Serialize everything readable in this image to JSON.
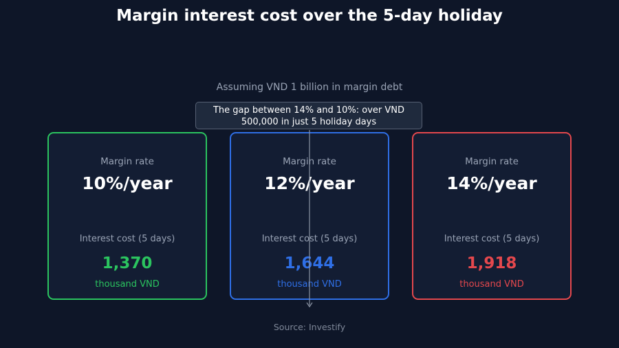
{
  "header": {
    "title": "Margin interest cost over the 5-day holiday",
    "subtitle": "Assuming VND 1 billion in margin debt"
  },
  "annotation": "The gap between 14% and 10%: over VND 500,000 in just 5 holiday days",
  "cards": [
    {
      "label": "Margin rate",
      "rate": "10%/year",
      "cost_label": "Interest cost (5 days)",
      "cost": "1,370",
      "unit": "thousand VND",
      "color": "#2bc45f"
    },
    {
      "label": "Margin rate",
      "rate": "12%/year",
      "cost_label": "Interest cost (5 days)",
      "cost": "1,644",
      "unit": "thousand VND",
      "color": "#2f6fe6"
    },
    {
      "label": "Margin rate",
      "rate": "14%/year",
      "cost_label": "Interest cost (5 days)",
      "cost": "1,918",
      "unit": "thousand VND",
      "color": "#e5484d"
    }
  ],
  "footer": {
    "source": "Source: Investify"
  }
}
